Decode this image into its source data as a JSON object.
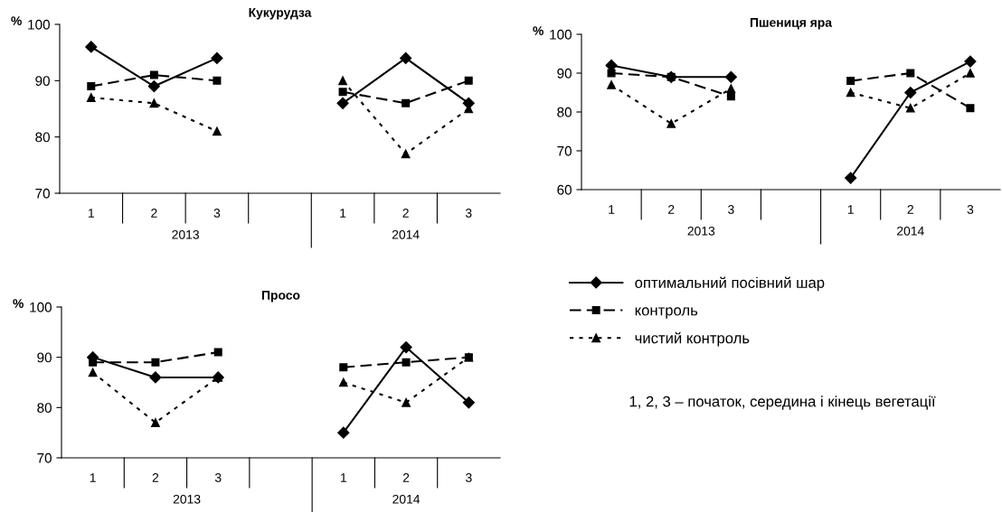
{
  "chart_data": [
    {
      "type": "line",
      "title": "Кукурудза",
      "ylabel": "%",
      "categories": [
        "1",
        "2",
        "3",
        null,
        "1",
        "2",
        "3"
      ],
      "ylim": [
        70,
        100
      ],
      "yticks": [
        70,
        80,
        90,
        100
      ],
      "grid": false,
      "legend": false,
      "annotations": [
        "2013",
        "2014"
      ],
      "series": [
        {
          "color": "#000000",
          "marker": "diamond",
          "line_style": "solid",
          "values": [
            96,
            89,
            94,
            null,
            86,
            94,
            86
          ]
        },
        {
          "color": "#000000",
          "marker": "square",
          "line_style": "dashed",
          "values": [
            89,
            91,
            90,
            null,
            88,
            86,
            90
          ]
        },
        {
          "color": "#000000",
          "marker": "triangle",
          "line_style": "dotted",
          "values": [
            87,
            86,
            81,
            null,
            90,
            77,
            85
          ]
        }
      ]
    },
    {
      "type": "line",
      "title": "Пшениця яра",
      "ylabel": "%",
      "categories": [
        "1",
        "2",
        "3",
        null,
        "1",
        "2",
        "3"
      ],
      "ylim": [
        60,
        100
      ],
      "yticks": [
        60,
        70,
        80,
        90,
        100
      ],
      "grid": false,
      "legend": false,
      "annotations": [
        "2013",
        "2014"
      ],
      "series": [
        {
          "color": "#000000",
          "marker": "diamond",
          "line_style": "solid",
          "values": [
            92,
            89,
            89,
            null,
            63,
            85,
            93
          ]
        },
        {
          "color": "#000000",
          "marker": "square",
          "line_style": "dashed",
          "values": [
            90,
            89,
            84,
            null,
            88,
            90,
            81
          ]
        },
        {
          "color": "#000000",
          "marker": "triangle",
          "line_style": "dotted",
          "values": [
            87,
            77,
            86,
            null,
            85,
            81,
            90
          ]
        }
      ]
    },
    {
      "type": "line",
      "title": "Просо",
      "ylabel": "%",
      "categories": [
        "1",
        "2",
        "3",
        null,
        "1",
        "2",
        "3"
      ],
      "ylim": [
        70,
        100
      ],
      "yticks": [
        70,
        80,
        90,
        100
      ],
      "grid": false,
      "legend": "right",
      "annotations": [
        "2013",
        "2014",
        "1, 2, 3 – початок, середина і кінець вегетації"
      ],
      "series": [
        {
          "name": "оптимальний посівний шар",
          "color": "#000000",
          "marker": "diamond",
          "line_style": "solid",
          "values": [
            90,
            86,
            86,
            null,
            75,
            92,
            81
          ]
        },
        {
          "name": "контроль",
          "color": "#000000",
          "marker": "square",
          "line_style": "dashed",
          "values": [
            89,
            89,
            91,
            null,
            88,
            89,
            90
          ]
        },
        {
          "name": "чистий контроль",
          "color": "#000000",
          "marker": "triangle",
          "line_style": "dotted",
          "values": [
            87,
            77,
            86,
            null,
            85,
            81,
            90
          ]
        }
      ]
    }
  ]
}
